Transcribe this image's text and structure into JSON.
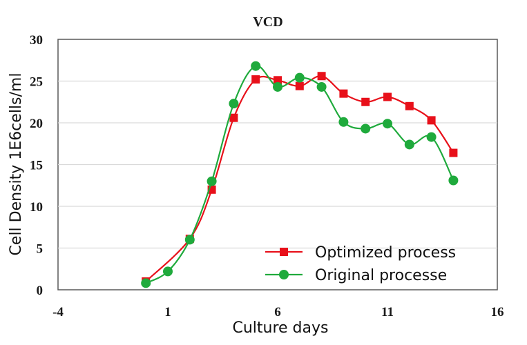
{
  "chart_data": {
    "type": "line",
    "title": "VCD",
    "xlabel": "Culture days",
    "ylabel": "Cell Density 1E6cells/ml",
    "xlim": [
      -4,
      16
    ],
    "ylim": [
      0,
      30
    ],
    "xticks": [
      -4,
      1,
      6,
      11,
      16
    ],
    "yticks": [
      0,
      5,
      10,
      15,
      20,
      25,
      30
    ],
    "grid": "horizontal",
    "legend_position": "bottom-right",
    "series": [
      {
        "name": "Optimized process",
        "color": "#e8101a",
        "marker": "square",
        "x": [
          0,
          2,
          3,
          4,
          5,
          6,
          7,
          8,
          9,
          10,
          11,
          12,
          13,
          14
        ],
        "y": [
          1.0,
          6.1,
          12.0,
          20.6,
          25.2,
          25.1,
          24.4,
          25.6,
          23.5,
          22.5,
          23.1,
          22.0,
          20.3,
          16.4
        ]
      },
      {
        "name": "Original processe",
        "color": "#1faa3c",
        "marker": "circle",
        "x": [
          0,
          1,
          2,
          3,
          4,
          5,
          6,
          7,
          8,
          9,
          10,
          11,
          12,
          13,
          14
        ],
        "y": [
          0.8,
          2.2,
          6.0,
          13.0,
          22.3,
          26.8,
          24.3,
          25.4,
          24.3,
          20.1,
          19.3,
          19.9,
          17.4,
          18.3,
          13.1
        ]
      }
    ]
  }
}
